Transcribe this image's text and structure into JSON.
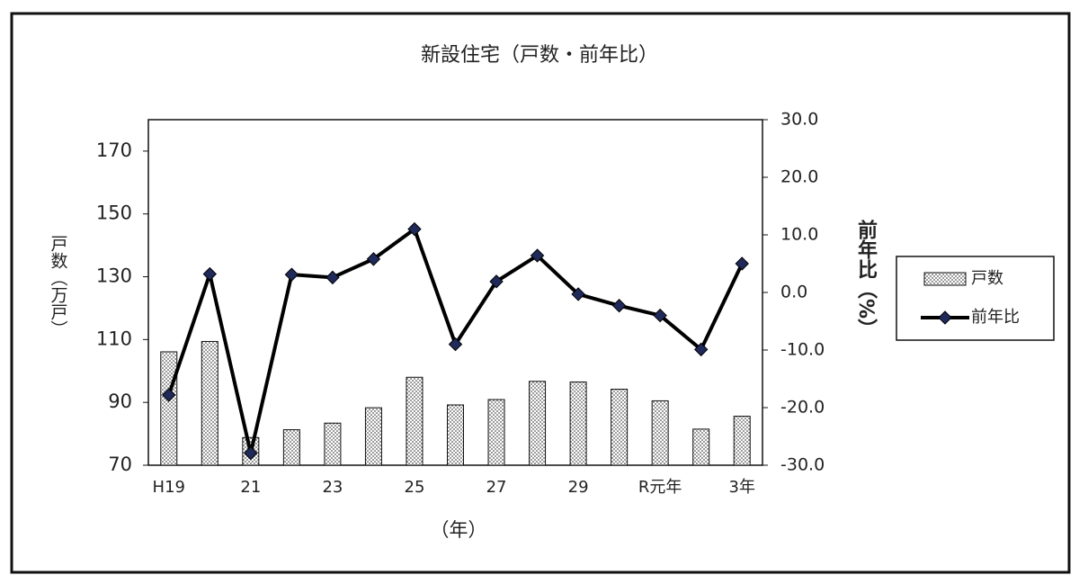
{
  "chart_data": {
    "type": "bar-line",
    "title": "新設住宅（戸数・前年比）",
    "x_label": "（年）",
    "y_label": "戸数（万戸）",
    "y2_label": "前年比（%）",
    "categories": [
      "H19",
      null,
      "21",
      null,
      "23",
      null,
      "25",
      null,
      "27",
      null,
      "29",
      null,
      "R元年",
      null,
      "3年"
    ],
    "series": [
      {
        "name": "戸数",
        "type": "bar",
        "color": "#555555",
        "values": [
          106.1,
          109.4,
          78.8,
          81.3,
          83.4,
          88.3,
          98.0,
          89.2,
          90.9,
          96.7,
          96.5,
          94.2,
          90.5,
          81.5,
          85.6
        ]
      },
      {
        "name": "前年比",
        "type": "line",
        "axis": "y2",
        "color": "#000000",
        "marker_color": "#1f2a5a",
        "values": [
          -17.8,
          3.2,
          -27.9,
          3.1,
          2.6,
          5.8,
          11.0,
          -9.0,
          1.9,
          6.4,
          -0.3,
          -2.3,
          -4.0,
          -9.9,
          5.0
        ]
      }
    ],
    "ylim": [
      70,
      180
    ],
    "yticks": [
      70,
      90,
      110,
      130,
      150,
      170
    ],
    "y2lim": [
      -30,
      30
    ],
    "y2ticks": [
      {
        "value": -30,
        "label": "-30.0"
      },
      {
        "value": -20,
        "label": "-20.0"
      },
      {
        "value": -10,
        "label": "-10.0"
      },
      {
        "value": 0,
        "label": "0.0"
      },
      {
        "value": 10,
        "label": "10.0"
      },
      {
        "value": 20,
        "label": "20.0"
      },
      {
        "value": 30,
        "label": "30.0"
      }
    ],
    "legend": "right",
    "grid": false
  }
}
